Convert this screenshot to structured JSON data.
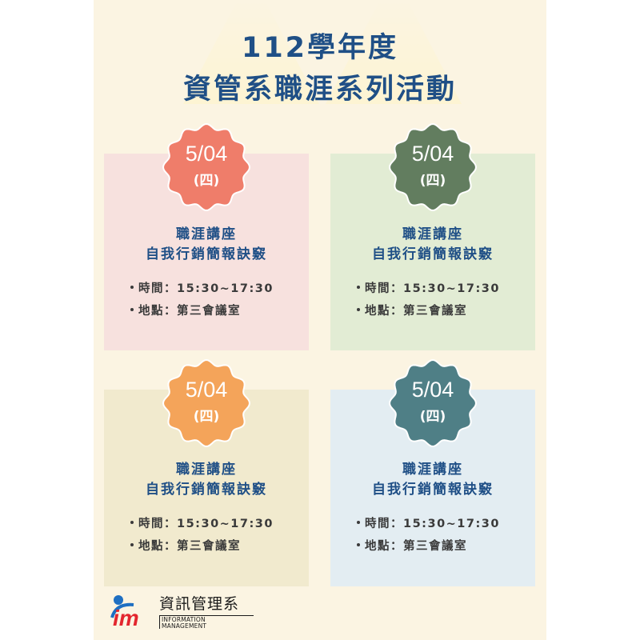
{
  "header": {
    "title_line1": "112學年度",
    "title_line2": "資管系職涯系列活動"
  },
  "cards": [
    {
      "date": "5/04",
      "weekday": "(四)",
      "line1": "職涯講座",
      "line2": "自我行銷簡報訣竅",
      "time": "時間：15:30~17:30",
      "place": "地點：第三會議室",
      "card_color": "#f7e1de",
      "badge_color": "#ef7d6a"
    },
    {
      "date": "5/04",
      "weekday": "(四)",
      "line1": "職涯講座",
      "line2": "自我行銷簡報訣竅",
      "time": "時間：15:30~17:30",
      "place": "地點：第三會議室",
      "card_color": "#e2ecd4",
      "badge_color": "#627d5f"
    },
    {
      "date": "5/04",
      "weekday": "(四)",
      "line1": "職涯講座",
      "line2": "自我行銷簡報訣竅",
      "time": "時間：15:30~17:30",
      "place": "地點：第三會議室",
      "card_color": "#f1eace",
      "badge_color": "#f4a45a"
    },
    {
      "date": "5/04",
      "weekday": "(四)",
      "line1": "職涯講座",
      "line2": "自我行銷簡報訣竅",
      "time": "時間：15:30~17:30",
      "place": "地點：第三會議室",
      "card_color": "#e3edf2",
      "badge_color": "#4f7f86"
    }
  ],
  "logo": {
    "name": "資訊管理系",
    "subtitle": "INFORMATION MANAGEMENT",
    "mark": "im",
    "colors": {
      "blue": "#1e6fc2",
      "red": "#e3262e"
    }
  }
}
